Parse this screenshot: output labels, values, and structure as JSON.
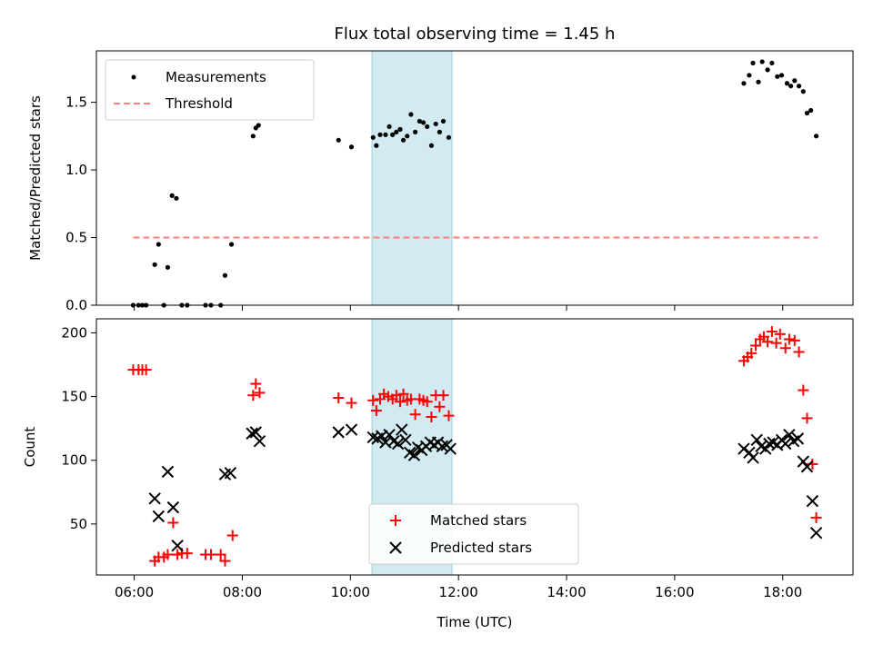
{
  "chart_data": [
    {
      "type": "scatter",
      "title": "Flux total observing time = 1.45 h",
      "xlabel": "",
      "ylabel": "Matched/Predicted stars",
      "xlim": [
        5.3,
        19.3
      ],
      "ylim": [
        0,
        1.88
      ],
      "yticks": [
        "0.0",
        "0.5",
        "1.0",
        "1.5"
      ],
      "ytick_values": [
        0,
        0.5,
        1.0,
        1.5
      ],
      "highlight_span": [
        10.4,
        11.88
      ],
      "highlight_color": "#add8e6",
      "threshold": {
        "name": "Threshold",
        "value": 0.5,
        "x": [
          5.98,
          18.65
        ],
        "color": "#ff7f7f"
      },
      "legend_position": "top-left",
      "series": [
        {
          "name": "Measurements",
          "color": "#000000",
          "marker": "dot",
          "points": [
            [
              5.98,
              0.0
            ],
            [
              6.08,
              0.0
            ],
            [
              6.15,
              0.0
            ],
            [
              6.22,
              0.0
            ],
            [
              6.38,
              0.3
            ],
            [
              6.45,
              0.45
            ],
            [
              6.55,
              0.0
            ],
            [
              6.62,
              0.28
            ],
            [
              6.7,
              0.81
            ],
            [
              6.78,
              0.79
            ],
            [
              6.88,
              0.0
            ],
            [
              6.98,
              0.0
            ],
            [
              7.32,
              0.0
            ],
            [
              7.42,
              0.0
            ],
            [
              7.6,
              0.0
            ],
            [
              7.68,
              0.22
            ],
            [
              7.8,
              0.45
            ],
            [
              8.2,
              1.25
            ],
            [
              8.25,
              1.31
            ],
            [
              8.3,
              1.33
            ],
            [
              9.78,
              1.22
            ],
            [
              10.02,
              1.17
            ],
            [
              10.42,
              1.24
            ],
            [
              10.48,
              1.18
            ],
            [
              10.55,
              1.26
            ],
            [
              10.65,
              1.26
            ],
            [
              10.72,
              1.32
            ],
            [
              10.78,
              1.26
            ],
            [
              10.85,
              1.28
            ],
            [
              10.92,
              1.3
            ],
            [
              10.98,
              1.22
            ],
            [
              11.05,
              1.25
            ],
            [
              11.12,
              1.41
            ],
            [
              11.2,
              1.28
            ],
            [
              11.28,
              1.36
            ],
            [
              11.35,
              1.35
            ],
            [
              11.42,
              1.32
            ],
            [
              11.5,
              1.18
            ],
            [
              11.58,
              1.34
            ],
            [
              11.65,
              1.28
            ],
            [
              11.72,
              1.36
            ],
            [
              11.82,
              1.24
            ],
            [
              17.28,
              1.64
            ],
            [
              17.38,
              1.7
            ],
            [
              17.45,
              1.79
            ],
            [
              17.55,
              1.65
            ],
            [
              17.62,
              1.8
            ],
            [
              17.72,
              1.74
            ],
            [
              17.8,
              1.79
            ],
            [
              17.9,
              1.69
            ],
            [
              17.98,
              1.7
            ],
            [
              18.08,
              1.64
            ],
            [
              18.15,
              1.62
            ],
            [
              18.22,
              1.66
            ],
            [
              18.3,
              1.62
            ],
            [
              18.38,
              1.58
            ],
            [
              18.45,
              1.42
            ],
            [
              18.52,
              1.44
            ],
            [
              18.62,
              1.25
            ]
          ]
        }
      ]
    },
    {
      "type": "scatter",
      "title": "",
      "xlabel": "Time (UTC)",
      "ylabel": "Count",
      "xlim": [
        5.3,
        19.3
      ],
      "ylim": [
        10,
        211
      ],
      "yticks": [
        "50",
        "100",
        "150",
        "200"
      ],
      "ytick_values": [
        50,
        100,
        150,
        200
      ],
      "xticks": [
        "06:00",
        "08:00",
        "10:00",
        "12:00",
        "14:00",
        "16:00",
        "18:00"
      ],
      "xtick_values": [
        6,
        8,
        10,
        12,
        14,
        16,
        18
      ],
      "highlight_span": [
        10.4,
        11.88
      ],
      "highlight_color": "#add8e6",
      "legend_position": "lower-center",
      "series": [
        {
          "name": "Matched stars",
          "color": "#ff0000",
          "marker": "plus",
          "points": [
            [
              5.98,
              171
            ],
            [
              6.08,
              171
            ],
            [
              6.15,
              171
            ],
            [
              6.22,
              171
            ],
            [
              6.38,
              21
            ],
            [
              6.45,
              24
            ],
            [
              6.55,
              24
            ],
            [
              6.62,
              26
            ],
            [
              6.72,
              51
            ],
            [
              6.8,
              26
            ],
            [
              6.88,
              27
            ],
            [
              6.98,
              27
            ],
            [
              7.32,
              26
            ],
            [
              7.42,
              26
            ],
            [
              7.6,
              26
            ],
            [
              7.68,
              21
            ],
            [
              7.82,
              41
            ],
            [
              8.2,
              151
            ],
            [
              8.25,
              160
            ],
            [
              8.32,
              153
            ],
            [
              9.78,
              149
            ],
            [
              10.02,
              145
            ],
            [
              10.42,
              147
            ],
            [
              10.48,
              139
            ],
            [
              10.55,
              148
            ],
            [
              10.62,
              152
            ],
            [
              10.7,
              150
            ],
            [
              10.78,
              148
            ],
            [
              10.85,
              151
            ],
            [
              10.92,
              146
            ],
            [
              10.98,
              152
            ],
            [
              11.05,
              147
            ],
            [
              11.12,
              148
            ],
            [
              11.2,
              136
            ],
            [
              11.28,
              148
            ],
            [
              11.35,
              147
            ],
            [
              11.42,
              146
            ],
            [
              11.5,
              134
            ],
            [
              11.58,
              151
            ],
            [
              11.65,
              142
            ],
            [
              11.72,
              151
            ],
            [
              11.82,
              135
            ],
            [
              17.28,
              178
            ],
            [
              17.35,
              181
            ],
            [
              17.42,
              184
            ],
            [
              17.5,
              190
            ],
            [
              17.58,
              195
            ],
            [
              17.65,
              197
            ],
            [
              17.72,
              193
            ],
            [
              17.8,
              201
            ],
            [
              17.88,
              192
            ],
            [
              17.95,
              199
            ],
            [
              18.05,
              188
            ],
            [
              18.12,
              195
            ],
            [
              18.22,
              194
            ],
            [
              18.3,
              185
            ],
            [
              18.38,
              155
            ],
            [
              18.45,
              133
            ],
            [
              18.55,
              97
            ],
            [
              18.62,
              55
            ]
          ]
        },
        {
          "name": "Predicted stars",
          "color": "#000000",
          "marker": "x",
          "points": [
            [
              6.38,
              70
            ],
            [
              6.45,
              56
            ],
            [
              6.62,
              91
            ],
            [
              6.72,
              63
            ],
            [
              6.8,
              33
            ],
            [
              7.68,
              89
            ],
            [
              7.78,
              90
            ],
            [
              8.18,
              121
            ],
            [
              8.25,
              122
            ],
            [
              8.32,
              115
            ],
            [
              9.78,
              122
            ],
            [
              10.02,
              124
            ],
            [
              10.42,
              118
            ],
            [
              10.5,
              117
            ],
            [
              10.58,
              119
            ],
            [
              10.65,
              114
            ],
            [
              10.72,
              120
            ],
            [
              10.8,
              115
            ],
            [
              10.88,
              113
            ],
            [
              10.95,
              124
            ],
            [
              11.02,
              116
            ],
            [
              11.1,
              106
            ],
            [
              11.18,
              104
            ],
            [
              11.25,
              110
            ],
            [
              11.32,
              108
            ],
            [
              11.4,
              111
            ],
            [
              11.48,
              114
            ],
            [
              11.55,
              112
            ],
            [
              11.62,
              114
            ],
            [
              11.7,
              111
            ],
            [
              11.78,
              112
            ],
            [
              11.85,
              109
            ],
            [
              17.28,
              109
            ],
            [
              17.38,
              106
            ],
            [
              17.45,
              102
            ],
            [
              17.52,
              116
            ],
            [
              17.6,
              111
            ],
            [
              17.68,
              109
            ],
            [
              17.75,
              113
            ],
            [
              17.82,
              114
            ],
            [
              17.9,
              112
            ],
            [
              17.98,
              116
            ],
            [
              18.05,
              113
            ],
            [
              18.12,
              120
            ],
            [
              18.2,
              115
            ],
            [
              18.28,
              117
            ],
            [
              18.38,
              99
            ],
            [
              18.45,
              95
            ],
            [
              18.55,
              68
            ],
            [
              18.62,
              43
            ]
          ]
        }
      ]
    }
  ]
}
